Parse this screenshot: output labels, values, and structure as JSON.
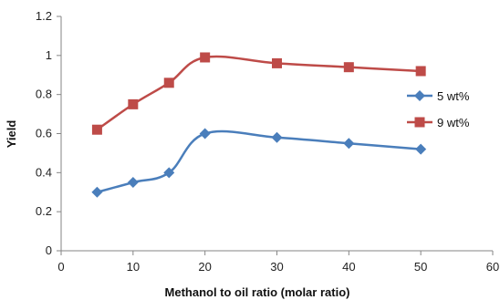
{
  "chart_data": {
    "type": "line",
    "xlabel": "Methanol to oil ratio (molar ratio)",
    "ylabel": "Yield",
    "xlim": [
      0,
      60
    ],
    "ylim": [
      0,
      1.2
    ],
    "xticks": [
      "0",
      "10",
      "20",
      "30",
      "40",
      "50",
      "60"
    ],
    "yticks": [
      "0",
      "0.2",
      "0.4",
      "0.6",
      "0.8",
      "1",
      "1.2"
    ],
    "x": [
      5,
      10,
      15,
      20,
      30,
      40,
      50
    ],
    "grid": false,
    "legend_position": "right",
    "series": [
      {
        "name": "5 wt%",
        "values": [
          0.3,
          0.35,
          0.4,
          0.6,
          0.58,
          0.55,
          0.52
        ],
        "color": "#4a7ebb",
        "marker": "diamond"
      },
      {
        "name": "9 wt%",
        "values": [
          0.62,
          0.75,
          0.86,
          0.99,
          0.96,
          0.94,
          0.92
        ],
        "color": "#be4b48",
        "marker": "square"
      }
    ]
  }
}
